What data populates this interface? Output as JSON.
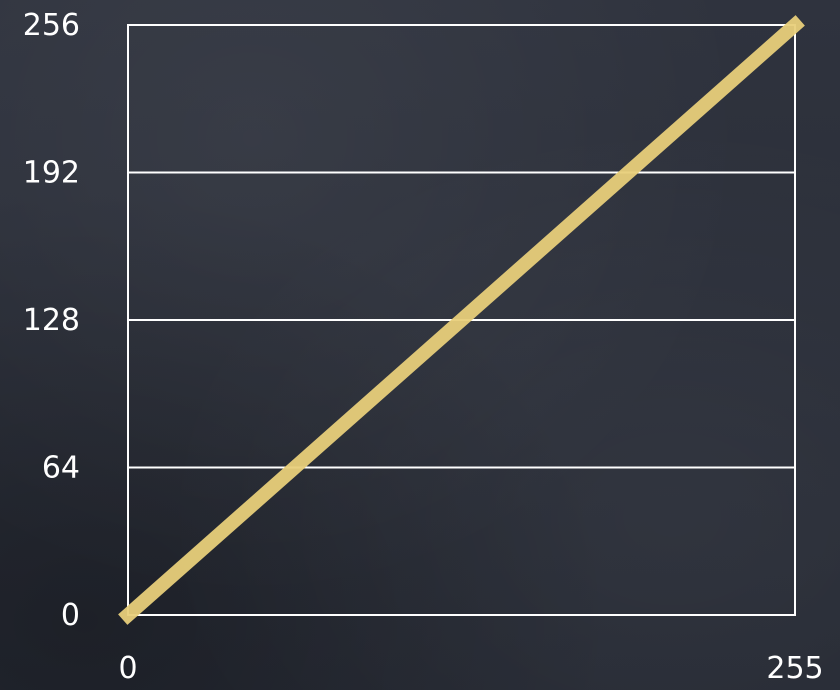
{
  "chart_data": {
    "type": "line",
    "title": "",
    "xlabel": "",
    "ylabel": "",
    "xlim": [
      0,
      255
    ],
    "ylim": [
      0,
      256
    ],
    "x_ticks": [
      0,
      255
    ],
    "y_ticks": [
      0,
      64,
      128,
      192,
      256
    ],
    "x_tick_labels": [
      "0",
      "255"
    ],
    "y_tick_labels": [
      "0",
      "64",
      "128",
      "192",
      "256"
    ],
    "grid": "horizontal",
    "legend": "none",
    "series": [
      {
        "x": [
          0,
          255
        ],
        "y": [
          0,
          256
        ]
      }
    ],
    "colors": {
      "background": "#2b2f3a",
      "grid": "#ffffff",
      "line": "#e8cf7a",
      "text": "#ffffff"
    }
  }
}
